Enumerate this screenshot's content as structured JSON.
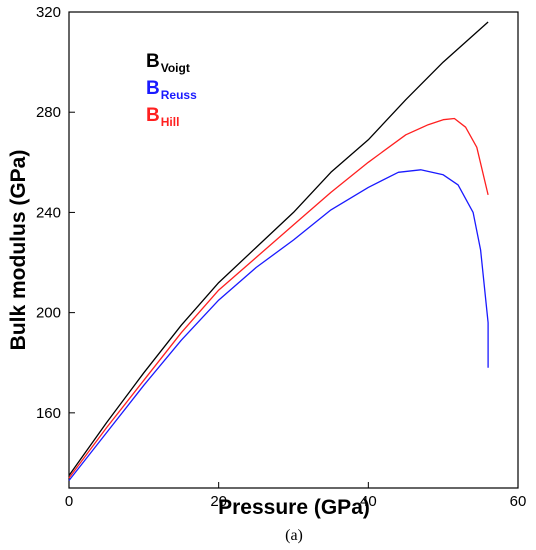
{
  "chart_data": {
    "type": "line",
    "xlabel": "Pressure (GPa)",
    "ylabel": "Bulk modulus (GPa)",
    "xlim": [
      0,
      60
    ],
    "ylim": [
      130,
      320
    ],
    "x_ticks": [
      0,
      20,
      40,
      60
    ],
    "y_ticks": [
      160,
      200,
      240,
      280,
      320
    ],
    "grid": false,
    "legend_position": "top-left",
    "caption": "(a)",
    "series": [
      {
        "name": "B",
        "subscript": "Voigt",
        "color": "#000000",
        "points": [
          [
            0,
            135
          ],
          [
            5,
            156
          ],
          [
            10,
            176
          ],
          [
            15,
            195
          ],
          [
            20,
            212
          ],
          [
            25,
            226
          ],
          [
            30,
            240
          ],
          [
            35,
            256
          ],
          [
            40,
            269
          ],
          [
            45,
            285
          ],
          [
            50,
            300
          ],
          [
            56,
            316
          ]
        ]
      },
      {
        "name": "B",
        "subscript": "Reuss",
        "color": "#1a1aff",
        "points": [
          [
            0,
            133
          ],
          [
            5,
            152
          ],
          [
            10,
            171
          ],
          [
            15,
            189
          ],
          [
            20,
            205
          ],
          [
            25,
            218
          ],
          [
            30,
            229
          ],
          [
            35,
            241
          ],
          [
            40,
            250
          ],
          [
            44,
            256
          ],
          [
            47,
            257
          ],
          [
            50,
            255
          ],
          [
            52,
            251
          ],
          [
            54,
            240
          ],
          [
            55,
            225
          ],
          [
            56,
            196
          ],
          [
            56,
            178
          ]
        ]
      },
      {
        "name": "B",
        "subscript": "Hill",
        "color": "#ff2020",
        "points": [
          [
            0,
            134
          ],
          [
            5,
            154
          ],
          [
            10,
            173
          ],
          [
            15,
            192
          ],
          [
            20,
            209
          ],
          [
            25,
            222
          ],
          [
            30,
            235
          ],
          [
            35,
            248
          ],
          [
            40,
            260
          ],
          [
            45,
            271
          ],
          [
            48,
            275
          ],
          [
            50,
            277
          ],
          [
            51.5,
            277.5
          ],
          [
            53,
            274
          ],
          [
            54.5,
            266
          ],
          [
            56,
            247
          ]
        ]
      }
    ]
  }
}
